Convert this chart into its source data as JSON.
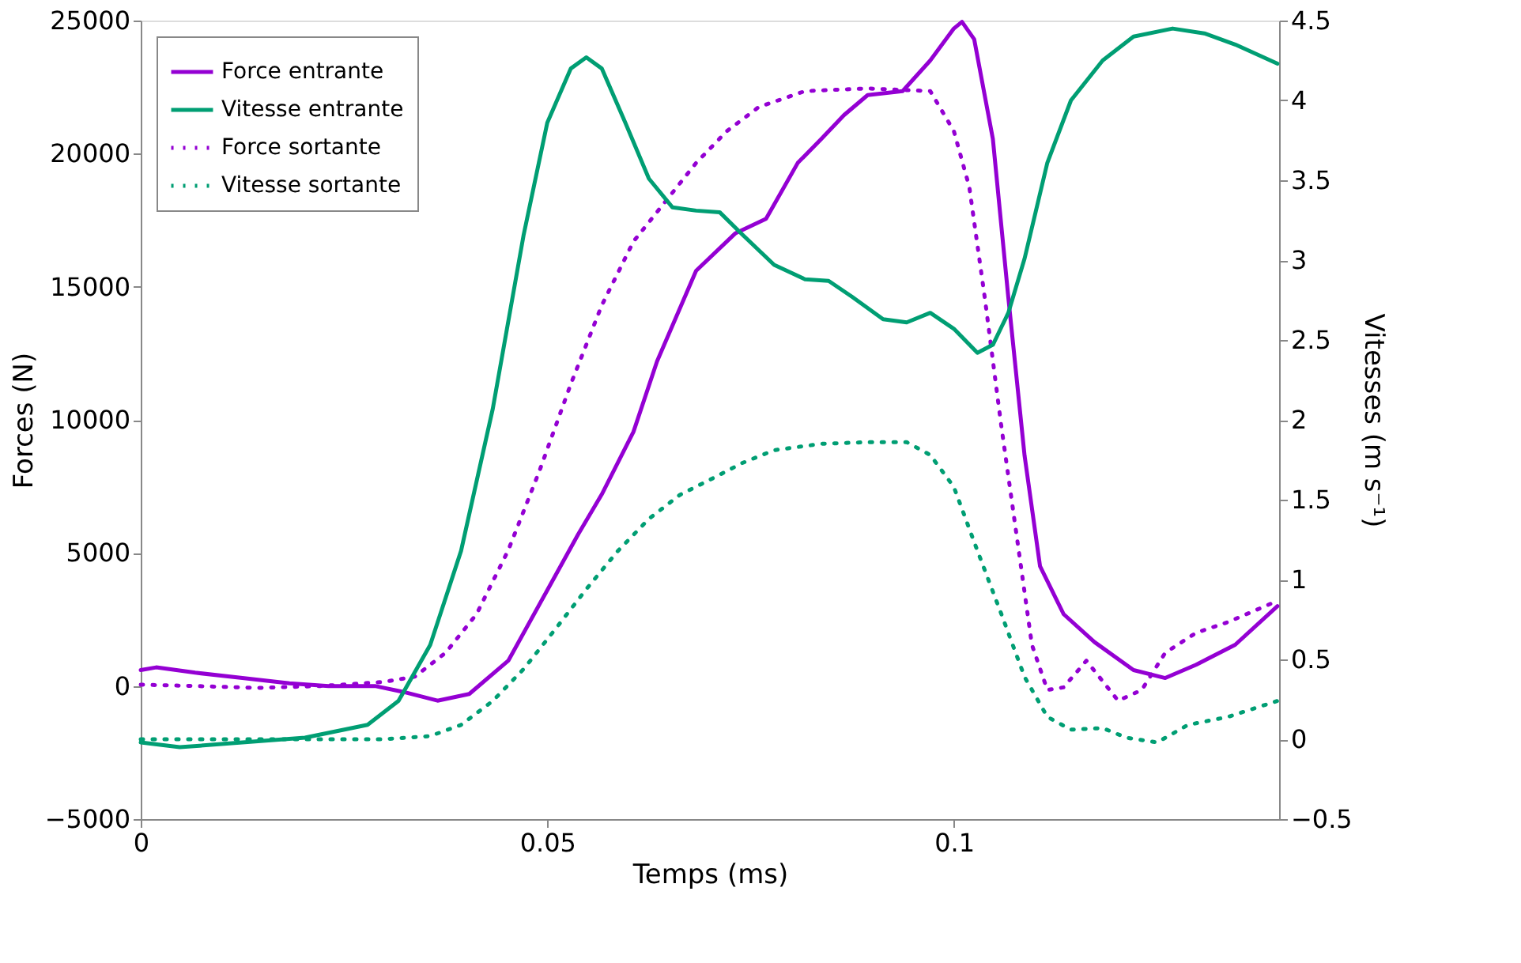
{
  "chart_data": {
    "type": "line",
    "xlabel": "Temps (ms)",
    "ylabel": "Forces (N)",
    "y2label": "Vitesses (m s⁻¹)",
    "xlim": [
      0,
      0.14
    ],
    "xticks": [
      0,
      0.05,
      0.1
    ],
    "ylim": [
      -5000,
      25000
    ],
    "yticks": [
      -5000,
      0,
      5000,
      10000,
      15000,
      20000,
      25000
    ],
    "y2lim": [
      -0.5,
      4.5
    ],
    "y2ticks": [
      -0.5,
      0,
      0.5,
      1,
      1.5,
      2,
      2.5,
      3,
      3.5,
      4,
      4.5
    ],
    "legend": "top left",
    "grid": false,
    "series": [
      {
        "name": "Force entrante",
        "color": "#9400d3",
        "axis": "y",
        "line_style": "solid",
        "x": [
          0,
          0.0019,
          0.0067,
          0.0125,
          0.0183,
          0.0231,
          0.0288,
          0.0327,
          0.0365,
          0.0404,
          0.0452,
          0.05,
          0.0538,
          0.0567,
          0.0606,
          0.0635,
          0.0683,
          0.0731,
          0.0769,
          0.0808,
          0.0837,
          0.0865,
          0.0894,
          0.0937,
          0.0971,
          0.1,
          0.101,
          0.1025,
          0.1048,
          0.1067,
          0.1087,
          0.1106,
          0.1135,
          0.1173,
          0.1221,
          0.126,
          0.1298,
          0.1346,
          0.1398
        ],
        "values": [
          600,
          700,
          500,
          300,
          100,
          0,
          0,
          -250,
          -550,
          -300,
          950,
          3600,
          5700,
          7200,
          9550,
          12200,
          15600,
          17000,
          17550,
          19650,
          20550,
          21450,
          22200,
          22350,
          23500,
          24700,
          24950,
          24300,
          20550,
          14600,
          8650,
          4500,
          2700,
          1650,
          600,
          300,
          800,
          1550,
          3000
        ]
      },
      {
        "name": "Vitesse entrante",
        "color": "#009e73",
        "axis": "y2",
        "line_style": "solid",
        "x": [
          0,
          0.0048,
          0.0125,
          0.0202,
          0.0279,
          0.0317,
          0.0356,
          0.0394,
          0.0433,
          0.0471,
          0.05,
          0.0529,
          0.0548,
          0.0567,
          0.0596,
          0.0625,
          0.0654,
          0.0683,
          0.0712,
          0.074,
          0.0779,
          0.0817,
          0.0846,
          0.0875,
          0.0913,
          0.0942,
          0.0971,
          0.1,
          0.1029,
          0.1048,
          0.1067,
          0.1087,
          0.1115,
          0.1144,
          0.1183,
          0.1221,
          0.1269,
          0.1308,
          0.1346,
          0.1398
        ],
        "values": [
          -0.02,
          -0.05,
          -0.02,
          0.01,
          0.09,
          0.24,
          0.59,
          1.18,
          2.07,
          3.16,
          3.86,
          4.2,
          4.27,
          4.2,
          3.86,
          3.51,
          3.33,
          3.31,
          3.3,
          3.16,
          2.97,
          2.88,
          2.87,
          2.77,
          2.63,
          2.61,
          2.67,
          2.57,
          2.42,
          2.47,
          2.67,
          3.01,
          3.61,
          4.0,
          4.25,
          4.4,
          4.45,
          4.42,
          4.35,
          4.23
        ]
      },
      {
        "name": "Force sortante",
        "color": "#9400d3",
        "axis": "y",
        "line_style": "dotted",
        "x": [
          0,
          0.0067,
          0.0144,
          0.0221,
          0.0298,
          0.0337,
          0.0375,
          0.0413,
          0.0452,
          0.049,
          0.0529,
          0.0567,
          0.0606,
          0.0644,
          0.0683,
          0.0721,
          0.076,
          0.0817,
          0.0894,
          0.0971,
          0.1,
          0.1019,
          0.1038,
          0.1058,
          0.1077,
          0.1096,
          0.1115,
          0.1135,
          0.1163,
          0.1202,
          0.1231,
          0.126,
          0.1298,
          0.1337,
          0.1398
        ],
        "values": [
          50,
          0,
          -70,
          0,
          150,
          350,
          1250,
          2700,
          5100,
          8050,
          11350,
          14300,
          16700,
          18150,
          19650,
          20850,
          21750,
          22350,
          22450,
          22350,
          20850,
          18750,
          14600,
          9850,
          5700,
          1550,
          -150,
          -50,
          950,
          -550,
          -150,
          1250,
          2000,
          2400,
          3200
        ]
      },
      {
        "name": "Vitesse sortante",
        "color": "#009e73",
        "axis": "y2",
        "line_style": "dotted",
        "x": [
          0,
          0.0067,
          0.0144,
          0.0221,
          0.0298,
          0.0356,
          0.0394,
          0.0433,
          0.0471,
          0.051,
          0.0548,
          0.0587,
          0.0625,
          0.0663,
          0.0702,
          0.074,
          0.0779,
          0.0837,
          0.0894,
          0.0942,
          0.0971,
          0.1,
          0.1029,
          0.1058,
          0.1087,
          0.1115,
          0.1144,
          0.1183,
          0.1212,
          0.125,
          0.1288,
          0.1337,
          0.1398
        ],
        "values": [
          0,
          0,
          0,
          0,
          0,
          0.02,
          0.09,
          0.24,
          0.44,
          0.69,
          0.94,
          1.18,
          1.38,
          1.53,
          1.63,
          1.73,
          1.81,
          1.85,
          1.86,
          1.86,
          1.78,
          1.58,
          1.18,
          0.79,
          0.39,
          0.14,
          0.06,
          0.07,
          0.01,
          -0.02,
          0.09,
          0.14,
          0.24
        ]
      }
    ]
  }
}
